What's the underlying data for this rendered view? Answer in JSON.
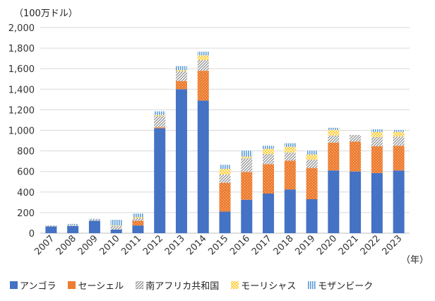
{
  "unit_label": "（100万ドル）",
  "year_suffix": "（年）",
  "colors": {
    "angola": "#4472c4",
    "seychelles": "#ed7d31",
    "south_africa": "#a5a5a5",
    "mauritius": "#ffc000",
    "mozambique": "#5b9bd5"
  },
  "chart_data": {
    "type": "bar",
    "stacked": true,
    "title": "",
    "xlabel": "（年）",
    "ylabel": "（100万ドル）",
    "ylim": [
      0,
      2000
    ],
    "yticks": [
      0,
      200,
      400,
      600,
      800,
      1000,
      1200,
      1400,
      1600,
      1800,
      2000
    ],
    "ytick_labels": [
      "0",
      "200",
      "400",
      "600",
      "800",
      "1,000",
      "1,200",
      "1,400",
      "1,600",
      "1,800",
      "2,000"
    ],
    "grid": true,
    "legend_position": "bottom",
    "categories": [
      "2007",
      "2008",
      "2009",
      "2010",
      "2011",
      "2012",
      "2013",
      "2014",
      "2015",
      "2016",
      "2017",
      "2018",
      "2019",
      "2020",
      "2021",
      "2022",
      "2023"
    ],
    "series": [
      {
        "name": "アンゴラ",
        "key": "angola",
        "pattern": "solid",
        "values": [
          65,
          70,
          120,
          35,
          75,
          1020,
          1400,
          1290,
          210,
          325,
          385,
          425,
          330,
          610,
          600,
          585,
          610
        ]
      },
      {
        "name": "セーシェル",
        "key": "seychelles",
        "pattern": "dots",
        "values": [
          0,
          0,
          0,
          0,
          45,
          10,
          80,
          290,
          280,
          270,
          285,
          280,
          305,
          270,
          290,
          260,
          240
        ]
      },
      {
        "name": "南アフリカ共和国",
        "key": "south_africa",
        "pattern": "diagonal",
        "values": [
          10,
          10,
          15,
          35,
          25,
          110,
          95,
          105,
          80,
          135,
          100,
          80,
          80,
          70,
          65,
          90,
          90
        ]
      },
      {
        "name": "モーリシャス",
        "key": "mauritius",
        "pattern": "cross",
        "values": [
          0,
          0,
          0,
          5,
          10,
          10,
          10,
          45,
          55,
          15,
          50,
          55,
          50,
          55,
          0,
          50,
          45
        ]
      },
      {
        "name": "モザンビーク",
        "key": "mozambique",
        "pattern": "vertical",
        "values": [
          0,
          10,
          5,
          55,
          35,
          35,
          40,
          35,
          40,
          60,
          30,
          35,
          40,
          20,
          0,
          25,
          20
        ]
      }
    ]
  }
}
